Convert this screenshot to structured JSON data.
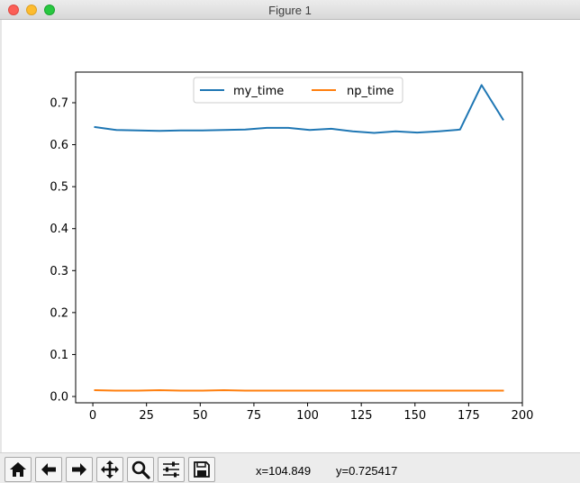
{
  "window": {
    "title": "Figure 1"
  },
  "toolbar": {
    "buttons": [
      {
        "name": "home-icon"
      },
      {
        "name": "back-arrow-icon"
      },
      {
        "name": "forward-arrow-icon"
      },
      {
        "name": "pan-icon"
      },
      {
        "name": "zoom-icon"
      },
      {
        "name": "configure-subplots-icon"
      },
      {
        "name": "save-icon"
      }
    ],
    "coord_x": "x=104.849",
    "coord_y": "y=0.725417"
  },
  "colors": {
    "my_time": "#1f77b4",
    "np_time": "#ff7f0e"
  },
  "chart_data": {
    "type": "line",
    "title": "",
    "xlabel": "",
    "ylabel": "",
    "xlim": [
      -8,
      200
    ],
    "ylim": [
      -0.015,
      0.773
    ],
    "xticks": [
      0,
      25,
      50,
      75,
      100,
      125,
      150,
      175,
      200
    ],
    "yticks": [
      0.0,
      0.1,
      0.2,
      0.3,
      0.4,
      0.5,
      0.6,
      0.7
    ],
    "ytick_labels": [
      "0.0",
      "0.1",
      "0.2",
      "0.3",
      "0.4",
      "0.5",
      "0.6",
      "0.7"
    ],
    "legend": "upper center",
    "grid": false,
    "series": [
      {
        "name": "my_time",
        "color": "#1f77b4",
        "x": [
          1,
          11,
          21,
          31,
          41,
          51,
          61,
          71,
          81,
          91,
          101,
          111,
          121,
          131,
          141,
          151,
          161,
          171,
          181,
          191
        ],
        "y": [
          0.642,
          0.635,
          0.634,
          0.633,
          0.634,
          0.634,
          0.635,
          0.636,
          0.64,
          0.64,
          0.635,
          0.638,
          0.632,
          0.628,
          0.632,
          0.629,
          0.632,
          0.636,
          0.742,
          0.66
        ]
      },
      {
        "name": "np_time",
        "color": "#ff7f0e",
        "x": [
          1,
          11,
          21,
          31,
          41,
          51,
          61,
          71,
          81,
          91,
          101,
          111,
          121,
          131,
          141,
          151,
          161,
          171,
          181,
          191
        ],
        "y": [
          0.015,
          0.014,
          0.014,
          0.015,
          0.014,
          0.014,
          0.015,
          0.014,
          0.014,
          0.014,
          0.014,
          0.014,
          0.014,
          0.014,
          0.014,
          0.014,
          0.014,
          0.014,
          0.014,
          0.014
        ]
      }
    ]
  }
}
